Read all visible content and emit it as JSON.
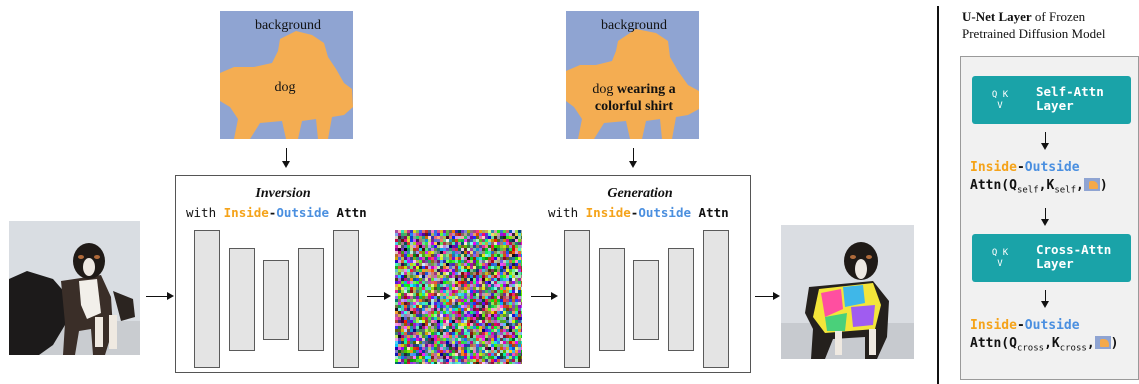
{
  "segmaps": {
    "left": {
      "background_label": "background",
      "object_label": "dog"
    },
    "right": {
      "background_label": "background",
      "object_label_plain": "dog ",
      "object_label_bold": "wearing a colorful shirt"
    }
  },
  "inversion": {
    "title": "Inversion",
    "with": "with ",
    "inside": "Inside",
    "dash": "-",
    "outside": "Outside",
    "attn": " Attn"
  },
  "generation": {
    "title": "Generation",
    "with": "with ",
    "inside": "Inside",
    "dash": "-",
    "outside": "Outside",
    "attn": " Attn"
  },
  "panel": {
    "header_bold": "U-Net Layer",
    "header_rest": " of Frozen",
    "header_line2": "Pretrained Diffusion Model",
    "self_layer": {
      "qk": "Q K",
      "v": "V",
      "name_line1": "Self-Attn",
      "name_line2": "Layer"
    },
    "cross_layer": {
      "qk": "Q K",
      "v": "V",
      "name_line1": "Cross-Attn",
      "name_line2": "Layer"
    },
    "io1": {
      "inside": "Inside",
      "dash": "-",
      "outside": "Outside"
    },
    "io2": {
      "inside": "Inside",
      "dash": "-",
      "outside": "Outside"
    },
    "attn1": {
      "prefix": "Attn(Q",
      "q_sub": "self",
      "mid": ",K",
      "k_sub": "self",
      "end": ",",
      "close": ")"
    },
    "attn2": {
      "prefix": "Attn(Q",
      "q_sub": "cross",
      "mid": ",K",
      "k_sub": "cross",
      "end": ",",
      "close": ")"
    }
  },
  "colors": {
    "inside_orange": "#f5a31a",
    "outside_blue": "#4a8fe0",
    "layer_teal": "#1aa3a8",
    "mask_background": "#8fa4d2",
    "mask_object": "#f4a94a"
  }
}
